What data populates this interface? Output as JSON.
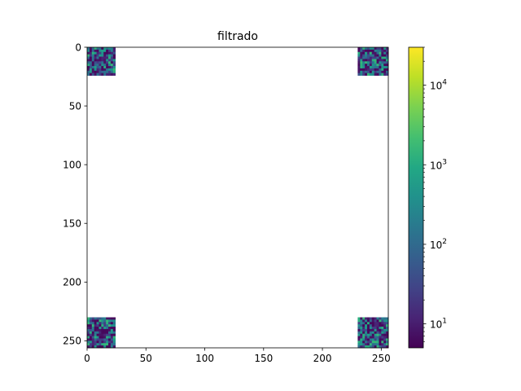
{
  "chart_data": {
    "type": "heatmap",
    "title": "filtrado",
    "xlabel": "",
    "ylabel": "",
    "image_shape": [
      256,
      256
    ],
    "xlim": [
      0,
      256
    ],
    "ylim": [
      256,
      0
    ],
    "xticks": [
      0,
      50,
      100,
      150,
      200,
      250
    ],
    "yticks": [
      0,
      50,
      100,
      150,
      200,
      250
    ],
    "masked_value": "blank (white) outside corner regions",
    "nonzero_regions": [
      {
        "name": "top-left",
        "x_range": [
          0,
          24
        ],
        "y_range": [
          0,
          24
        ]
      },
      {
        "name": "top-right",
        "x_range": [
          230,
          256
        ],
        "y_range": [
          0,
          24
        ]
      },
      {
        "name": "bottom-left",
        "x_range": [
          0,
          24
        ],
        "y_range": [
          230,
          256
        ]
      },
      {
        "name": "bottom-right",
        "x_range": [
          230,
          256
        ],
        "y_range": [
          230,
          256
        ]
      }
    ],
    "colorbar": {
      "colormap": "viridis",
      "scale": "log",
      "range": [
        5,
        30000
      ],
      "major_ticks": [
        {
          "value": 10,
          "mantissa": "10",
          "exponent": "1"
        },
        {
          "value": 100,
          "mantissa": "10",
          "exponent": "2"
        },
        {
          "value": 1000,
          "mantissa": "10",
          "exponent": "3"
        },
        {
          "value": 10000,
          "mantissa": "10",
          "exponent": "4"
        }
      ],
      "minor_ticks": [
        6,
        7,
        8,
        9,
        20,
        30,
        40,
        50,
        60,
        70,
        80,
        90,
        200,
        300,
        400,
        500,
        600,
        700,
        800,
        900,
        2000,
        3000,
        4000,
        5000,
        6000,
        7000,
        8000,
        9000,
        20000,
        30000
      ]
    }
  }
}
